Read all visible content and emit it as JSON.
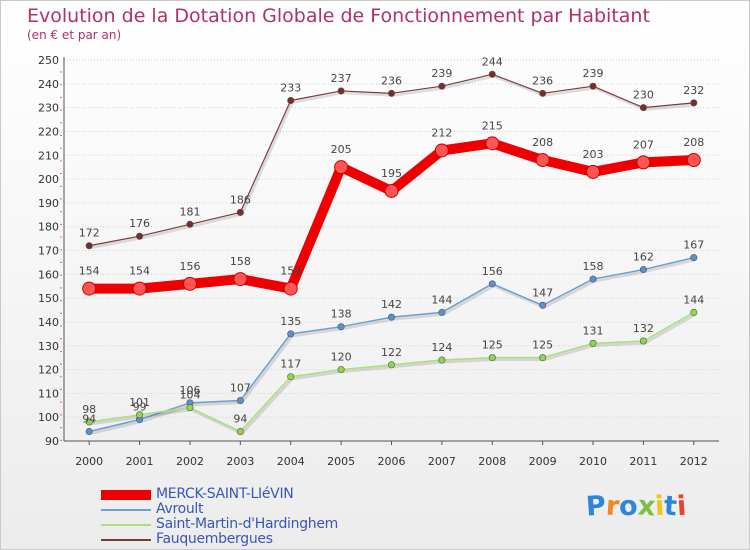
{
  "chart_data": {
    "type": "line",
    "title": "Evolution de la Dotation Globale de Fonctionnement par Habitant",
    "subtitle": "(en € et par an)",
    "xlabel": "",
    "ylabel": "",
    "ylim": [
      90,
      250
    ],
    "y_ticks": [
      90,
      100,
      110,
      120,
      130,
      140,
      150,
      160,
      170,
      180,
      190,
      200,
      210,
      220,
      230,
      240,
      250
    ],
    "categories": [
      "2000",
      "2001",
      "2002",
      "2003",
      "2004",
      "2005",
      "2006",
      "2007",
      "2008",
      "2009",
      "2010",
      "2011",
      "2012"
    ],
    "grid": true,
    "legend_position": "bottom-left",
    "series": [
      {
        "name": "MERCK-SAINT-LIéVIN",
        "color": "#ee0000",
        "width": 10,
        "marker_fill": "#ff5555",
        "values": [
          154,
          154,
          156,
          158,
          154,
          205,
          195,
          212,
          215,
          208,
          203,
          207,
          208
        ]
      },
      {
        "name": "Avroult",
        "color": "#6d9fd1",
        "width": 1.5,
        "marker_fill": "#5a8fd0",
        "values": [
          94,
          99,
          106,
          107,
          135,
          138,
          142,
          144,
          156,
          147,
          158,
          162,
          167
        ]
      },
      {
        "name": "Saint-Martin-d'Hardinghem",
        "color": "#a8e07a",
        "width": 1.5,
        "marker_fill": "#8fd64a",
        "values": [
          98,
          101,
          104,
          94,
          117,
          120,
          122,
          124,
          125,
          125,
          131,
          132,
          144
        ]
      },
      {
        "name": "Fauquembergues",
        "color": "#7b3a3a",
        "width": 1.2,
        "marker_fill": "#7b2b2b",
        "values": [
          172,
          176,
          181,
          186,
          233,
          237,
          236,
          239,
          244,
          236,
          239,
          230,
          232
        ]
      }
    ]
  },
  "logo": {
    "letters": [
      "P",
      "r",
      "o",
      "x",
      "i",
      "t",
      "i"
    ],
    "colors": [
      "#2f86d8",
      "#f08a1c",
      "#2f86d8",
      "#7ac142",
      "#f0c419",
      "#2f86d8",
      "#e7442b"
    ]
  }
}
